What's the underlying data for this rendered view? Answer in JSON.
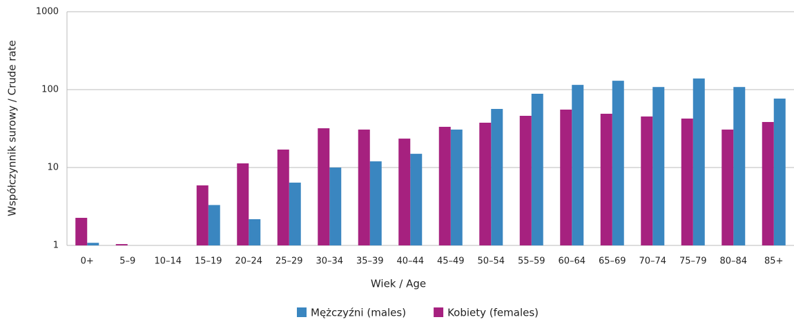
{
  "chart_data": {
    "type": "bar",
    "x_label": "Wiek / Age",
    "y_label": "Współczynnik surowy / Crude rate",
    "categories": [
      "0+",
      "5–9",
      "10–14",
      "15–19",
      "20–24",
      "25–29",
      "30–34",
      "35–39",
      "40–44",
      "45–49",
      "50–54",
      "55–59",
      "60–64",
      "65–69",
      "70–74",
      "75–79",
      "80–84",
      "85+"
    ],
    "series": [
      {
        "name": "Mężczyźni (males)",
        "color": "#3a86c0",
        "values": [
          1.08,
          null,
          null,
          3.3,
          2.17,
          6.4,
          10,
          12.0,
          15.0,
          30.7,
          56.5,
          88.5,
          115,
          130,
          108,
          139,
          108,
          76.7
        ]
      },
      {
        "name": "Kobiety (females)",
        "color": "#a6217f",
        "values": [
          2.26,
          1.04,
          null,
          5.9,
          11.3,
          17,
          31.9,
          30.7,
          23.5,
          33.3,
          37.6,
          46.1,
          55.4,
          49,
          45.2,
          42.5,
          30.7,
          38.4
        ]
      }
    ],
    "log_scale": true,
    "ylim": [
      1,
      1000
    ],
    "yticks": [
      1,
      10,
      100,
      1000
    ],
    "grid": true,
    "legend": "bottom"
  }
}
